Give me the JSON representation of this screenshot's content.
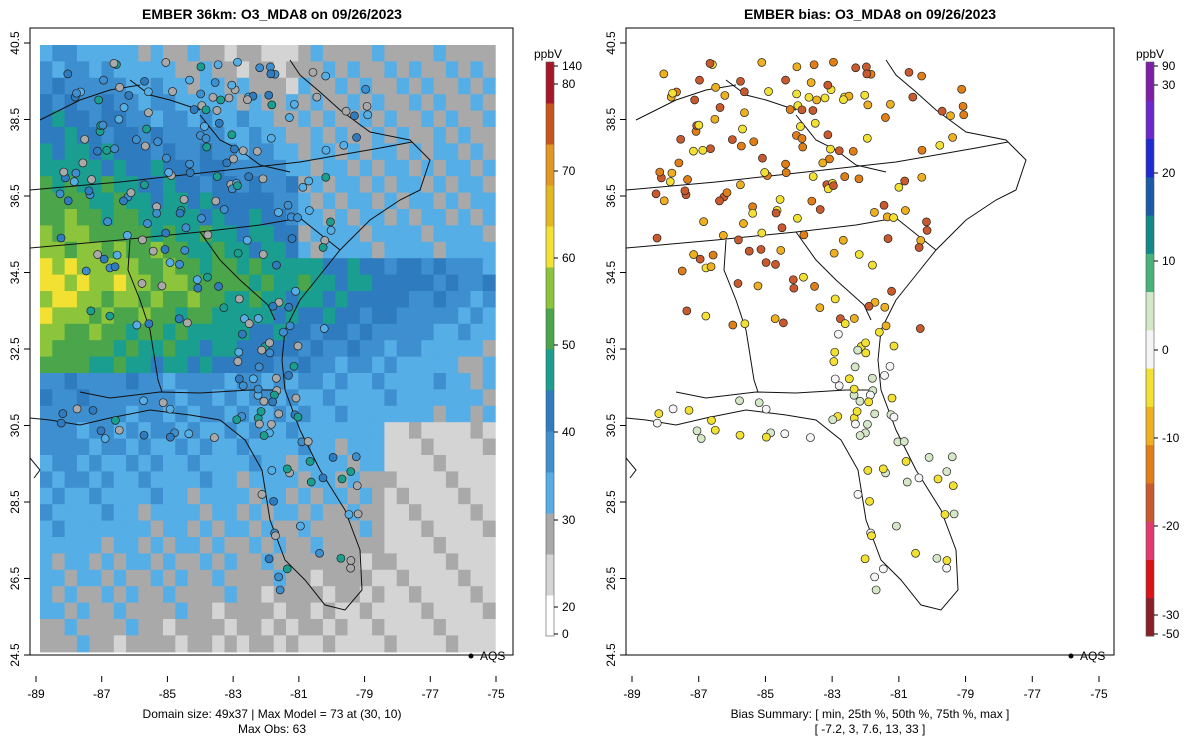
{
  "left": {
    "title": "EMBER 36km: O3_MDA8 on 09/26/2023",
    "colorbar": {
      "unit": "ppbV",
      "ticks": [
        "140",
        "80",
        "70",
        "60",
        "50",
        "40",
        "30",
        "20",
        "0"
      ],
      "colors": [
        "#ffffff",
        "#d4d4d4",
        "#a9a9a9",
        "#55aee6",
        "#3e8fcf",
        "#2e7bbf",
        "#1a9e8f",
        "#4aa54b",
        "#8cc43b",
        "#f2e033",
        "#e3b71f",
        "#e39722",
        "#c9551a",
        "#a6172a"
      ]
    },
    "legend_label": "AQS",
    "footer_line1": "Domain size: 49x37 | Max Model = 73 at (30, 10)",
    "footer_line2": "Max Obs: 63"
  },
  "right": {
    "title": "EMBER bias: O3_MDA8 on 09/26/2023",
    "colorbar": {
      "unit": "ppbV",
      "ticks": [
        "90",
        "30",
        "20",
        "10",
        "0",
        "-10",
        "-20",
        "-30",
        "-50"
      ],
      "colors": [
        "#8a1f27",
        "#d9131a",
        "#e13a6e",
        "#c95a2d",
        "#e07f17",
        "#efb01f",
        "#f2e033",
        "#f5f5f5",
        "#d4e8c8",
        "#49b27b",
        "#128a8a",
        "#1a5aa6",
        "#1f2ad1",
        "#6a28c9",
        "#7e1fa6"
      ]
    },
    "legend_label": "AQS",
    "footer_line1": "Bias Summary: [ min, 25th %, 50th %, 75th %, max ]",
    "footer_line2": "[ -7.2,   3,   7.6,   13,   33 ]"
  },
  "axes": {
    "x_ticks": [
      "-89",
      "-87",
      "-85",
      "-83",
      "-81",
      "-79",
      "-77",
      "-75"
    ],
    "y_ticks": [
      "40.5",
      "38.5",
      "36.5",
      "34.5",
      "32.5",
      "30.5",
      "28.5",
      "26.5",
      "24.5"
    ]
  }
}
